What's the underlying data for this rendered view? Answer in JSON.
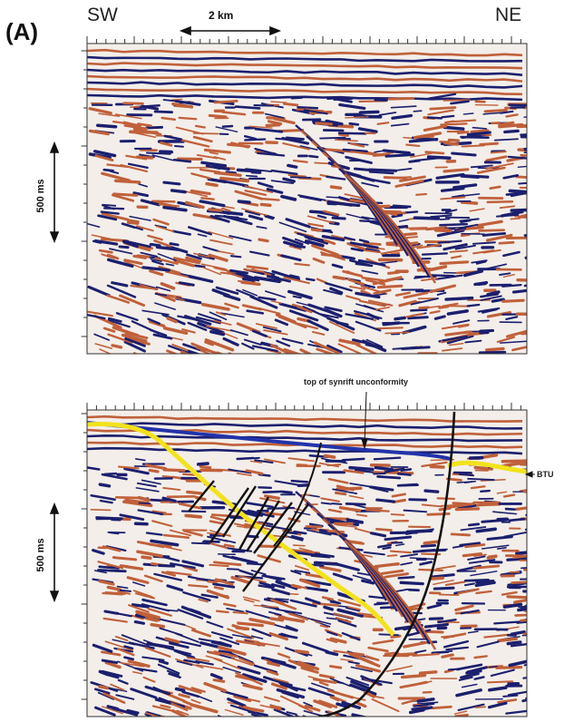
{
  "figure": {
    "panel_label": "(A)",
    "direction_left": "SW",
    "direction_right": "NE",
    "scale_bar_label": "2 km",
    "time_scale_label_top": "500 ms",
    "time_scale_label_bottom": "500 ms"
  },
  "interpreted_panel": {
    "unconformity_label": "top of synrift unconformity",
    "btu_label": "BTU"
  },
  "colors": {
    "peak": "#1b1f6e",
    "trough": "#c0603a",
    "background": "#f3eee9",
    "unconformity_line": "#2233aa",
    "btu_horizon": "#f2e21c",
    "faults": "#111111"
  }
}
